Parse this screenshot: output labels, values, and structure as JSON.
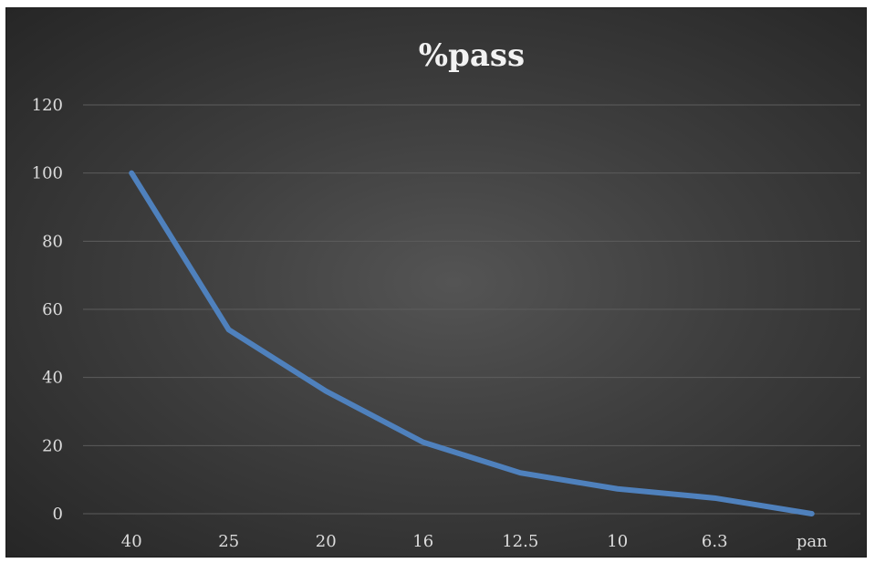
{
  "chart_data": {
    "type": "line",
    "title": "%pass",
    "xlabel": "",
    "ylabel": "",
    "categories": [
      "40",
      "25",
      "20",
      "16",
      "12.5",
      "10",
      "6.3",
      "pan"
    ],
    "series": [
      {
        "values": [
          100,
          54,
          36,
          21,
          12,
          7.3,
          4.6,
          0
        ]
      }
    ],
    "ylim": [
      0,
      120
    ],
    "yticks": [
      0,
      20,
      40,
      60,
      80,
      100,
      120
    ],
    "grid": true,
    "legend": "none",
    "colors": {
      "line": "#4f81bd",
      "background": "#3e3e3e",
      "text": "#dcdcdc",
      "grid": "#5c5c5c"
    }
  }
}
